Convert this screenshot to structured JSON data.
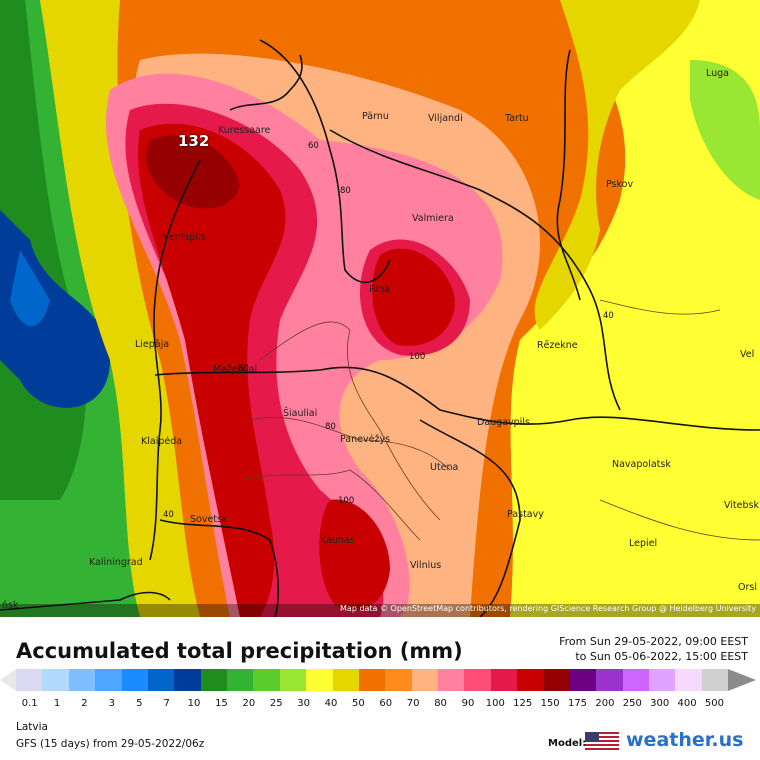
{
  "map": {
    "max_value_label": "132",
    "attribution": "Map data © OpenStreetMap contributors, rendering GIScience Research Group @ Heidelberg University",
    "contour_labels": [
      "80",
      "60",
      "80",
      "100",
      "80",
      "100",
      "40",
      "40"
    ],
    "cities": [
      {
        "name": "Kuressaare"
      },
      {
        "name": "Pärnu"
      },
      {
        "name": "Viljandi"
      },
      {
        "name": "Tartu"
      },
      {
        "name": "Luga"
      },
      {
        "name": "Pskov"
      },
      {
        "name": "Valmiera"
      },
      {
        "name": "Ventspils"
      },
      {
        "name": "Riga"
      },
      {
        "name": "Rēzekne"
      },
      {
        "name": "Liepāja"
      },
      {
        "name": "Mažeikiai"
      },
      {
        "name": "Šiauliai"
      },
      {
        "name": "Panevėžys"
      },
      {
        "name": "Daugavpils"
      },
      {
        "name": "Klaipėda"
      },
      {
        "name": "Utena"
      },
      {
        "name": "Navapolatsk"
      },
      {
        "name": "Vitebsk"
      },
      {
        "name": "Sovetsk"
      },
      {
        "name": "Pastavy"
      },
      {
        "name": "Kaunas"
      },
      {
        "name": "Lepiel"
      },
      {
        "name": "Kaliningrad"
      },
      {
        "name": "Vilnius"
      },
      {
        "name": "Orsl"
      },
      {
        "name": "Vel"
      },
      {
        "name": "ńsk"
      }
    ]
  },
  "header": {
    "title": "Accumulated total precipitation (mm)",
    "from": "From Sun 29-05-2022, 09:00 EEST",
    "to": "to Sun 05-06-2022, 15:00 EEST"
  },
  "legend": {
    "values": [
      "0.1",
      "1",
      "2",
      "3",
      "5",
      "7",
      "10",
      "15",
      "20",
      "25",
      "30",
      "40",
      "50",
      "60",
      "70",
      "80",
      "90",
      "100",
      "125",
      "150",
      "175",
      "200",
      "250",
      "300",
      "400",
      "500"
    ],
    "colors": [
      "#d9d9f2",
      "#b3d9ff",
      "#80bfff",
      "#4da6ff",
      "#1a8cff",
      "#0066cc",
      "#003c99",
      "#1f8c1f",
      "#33b233",
      "#5ccc2b",
      "#99e633",
      "#ffff33",
      "#e6d600",
      "#f07000",
      "#ff8c1a",
      "#ffb380",
      "#ff809f",
      "#ff4d79",
      "#e6194b",
      "#c80000",
      "#960000",
      "#6b0080",
      "#9933cc",
      "#cc66ff",
      "#e0a3ff",
      "#f5d9ff",
      "#d0d0d0"
    ]
  },
  "footer": {
    "region": "Latvia",
    "model_run": "GFS (15 days) from 29-05-2022/06z",
    "model_label": "Model:",
    "brand": "weather.us"
  }
}
